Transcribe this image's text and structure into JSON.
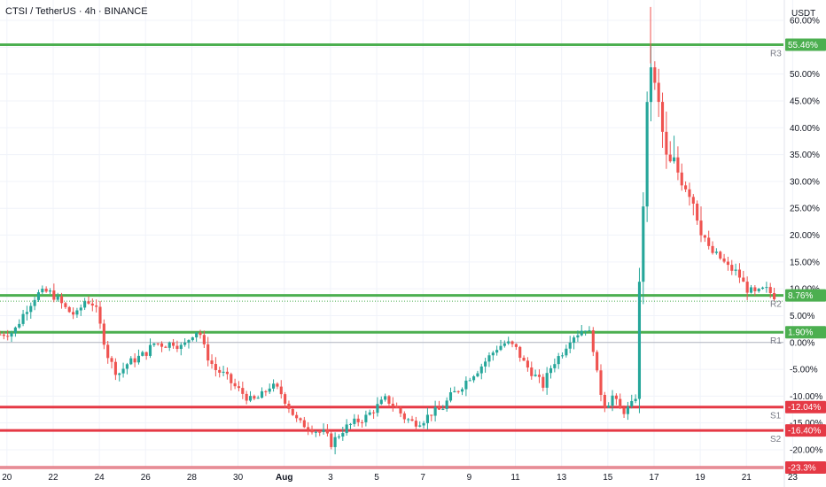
{
  "chart_data": {
    "type": "candlestick",
    "title": "CTSI / TetherUS · 4h · BINANCE",
    "ylabel": "USDT",
    "ylim": [
      -23.3,
      63.8
    ],
    "grid": true,
    "y_ticks": [
      "60.00%",
      "55.00%",
      "50.00%",
      "45.00%",
      "40.00%",
      "35.00%",
      "30.00%",
      "25.00%",
      "20.00%",
      "15.00%",
      "10.00%",
      "5.00%",
      "0.00%",
      "-5.00%",
      "-10.00%",
      "-15.00%",
      "-20.00%"
    ],
    "y_tick_values": [
      60,
      55,
      50,
      45,
      40,
      35,
      30,
      25,
      20,
      15,
      10,
      5,
      0,
      -5,
      -10,
      -15,
      -20
    ],
    "x_ticks": [
      "20",
      "22",
      "24",
      "26",
      "28",
      "30",
      "Aug",
      "3",
      "5",
      "7",
      "9",
      "11",
      "13",
      "15",
      "17",
      "19",
      "21",
      "23"
    ],
    "x_tick_positions": [
      0.0,
      2.0,
      4.0,
      6.0,
      8.0,
      10.0,
      12.0,
      14.0,
      16.0,
      18.0,
      20.0,
      22.0,
      24.0,
      26.0,
      28.0,
      30.0,
      32.0,
      34.0
    ],
    "x_range": [
      -0.3,
      33.6
    ],
    "levels": [
      {
        "name": "R3",
        "value": 55.46,
        "badge": "55.46%",
        "kind": "resistance"
      },
      {
        "name": "R2",
        "value": 8.76,
        "badge": "8.76%",
        "kind": "resistance"
      },
      {
        "name": "R1",
        "value": 1.9,
        "badge": "1.90%",
        "kind": "resistance"
      },
      {
        "name": "S1",
        "value": -12.04,
        "badge": "-12.04%",
        "kind": "support"
      },
      {
        "name": "S2",
        "value": -16.4,
        "badge": "-16.40%",
        "kind": "support"
      },
      {
        "name": "",
        "value": -23.3,
        "badge": "-23.3%",
        "kind": "support"
      }
    ],
    "zero_line": 0,
    "path": [
      [
        -0.3,
        1.5
      ],
      [
        0.3,
        2
      ],
      [
        0.8,
        6
      ],
      [
        1.3,
        9
      ],
      [
        1.8,
        9.5
      ],
      [
        2.2,
        8
      ],
      [
        2.6,
        6
      ],
      [
        3.0,
        5
      ],
      [
        3.4,
        8
      ],
      [
        3.8,
        7
      ],
      [
        4.1,
        2
      ],
      [
        4.4,
        -3
      ],
      [
        4.8,
        -6
      ],
      [
        5.2,
        -4
      ],
      [
        5.6,
        -3
      ],
      [
        6.0,
        -2
      ],
      [
        6.4,
        0
      ],
      [
        6.8,
        -0.5
      ],
      [
        7.2,
        0
      ],
      [
        7.6,
        -1
      ],
      [
        8.0,
        1.5
      ],
      [
        8.3,
        2.5
      ],
      [
        8.6,
        -2
      ],
      [
        9.0,
        -5
      ],
      [
        9.4,
        -6
      ],
      [
        9.8,
        -8
      ],
      [
        10.2,
        -9.5
      ],
      [
        10.6,
        -11
      ],
      [
        11.0,
        -10
      ],
      [
        11.4,
        -8
      ],
      [
        11.8,
        -9
      ],
      [
        12.2,
        -12
      ],
      [
        12.6,
        -15
      ],
      [
        13.0,
        -15.5
      ],
      [
        13.4,
        -16.5
      ],
      [
        13.8,
        -17
      ],
      [
        14.0,
        -19
      ],
      [
        14.2,
        -18
      ],
      [
        14.6,
        -16
      ],
      [
        15.0,
        -15
      ],
      [
        15.5,
        -14
      ],
      [
        16.0,
        -12
      ],
      [
        16.4,
        -10.5
      ],
      [
        16.8,
        -12
      ],
      [
        17.2,
        -14
      ],
      [
        17.6,
        -15
      ],
      [
        18.0,
        -14.5
      ],
      [
        18.4,
        -13
      ],
      [
        18.8,
        -12.5
      ],
      [
        19.2,
        -10
      ],
      [
        19.6,
        -8.5
      ],
      [
        20.0,
        -6.5
      ],
      [
        20.4,
        -5
      ],
      [
        20.8,
        -3
      ],
      [
        21.2,
        -1
      ],
      [
        21.6,
        0
      ],
      [
        22.0,
        -1
      ],
      [
        22.4,
        -4
      ],
      [
        22.8,
        -6
      ],
      [
        23.2,
        -8
      ],
      [
        23.6,
        -4
      ],
      [
        24.0,
        -2
      ],
      [
        24.4,
        1
      ],
      [
        24.8,
        2
      ],
      [
        25.0,
        3
      ],
      [
        25.3,
        1
      ],
      [
        25.6,
        -8
      ],
      [
        25.9,
        -12
      ],
      [
        26.2,
        -10
      ],
      [
        26.6,
        -13
      ],
      [
        27.0,
        -12
      ],
      [
        27.2,
        -10
      ],
      [
        27.4,
        15
      ],
      [
        27.6,
        32
      ],
      [
        27.8,
        54
      ],
      [
        28.0,
        48
      ],
      [
        28.2,
        44
      ],
      [
        28.4,
        38
      ],
      [
        28.6,
        32
      ],
      [
        28.8,
        34
      ],
      [
        29.0,
        32
      ],
      [
        29.3,
        30
      ],
      [
        29.6,
        28
      ],
      [
        30.0,
        22
      ],
      [
        30.4,
        17
      ],
      [
        30.8,
        16
      ],
      [
        31.2,
        14
      ],
      [
        31.6,
        13
      ],
      [
        32.0,
        10
      ],
      [
        32.4,
        9
      ],
      [
        32.8,
        10
      ],
      [
        33.2,
        8.7
      ]
    ]
  }
}
